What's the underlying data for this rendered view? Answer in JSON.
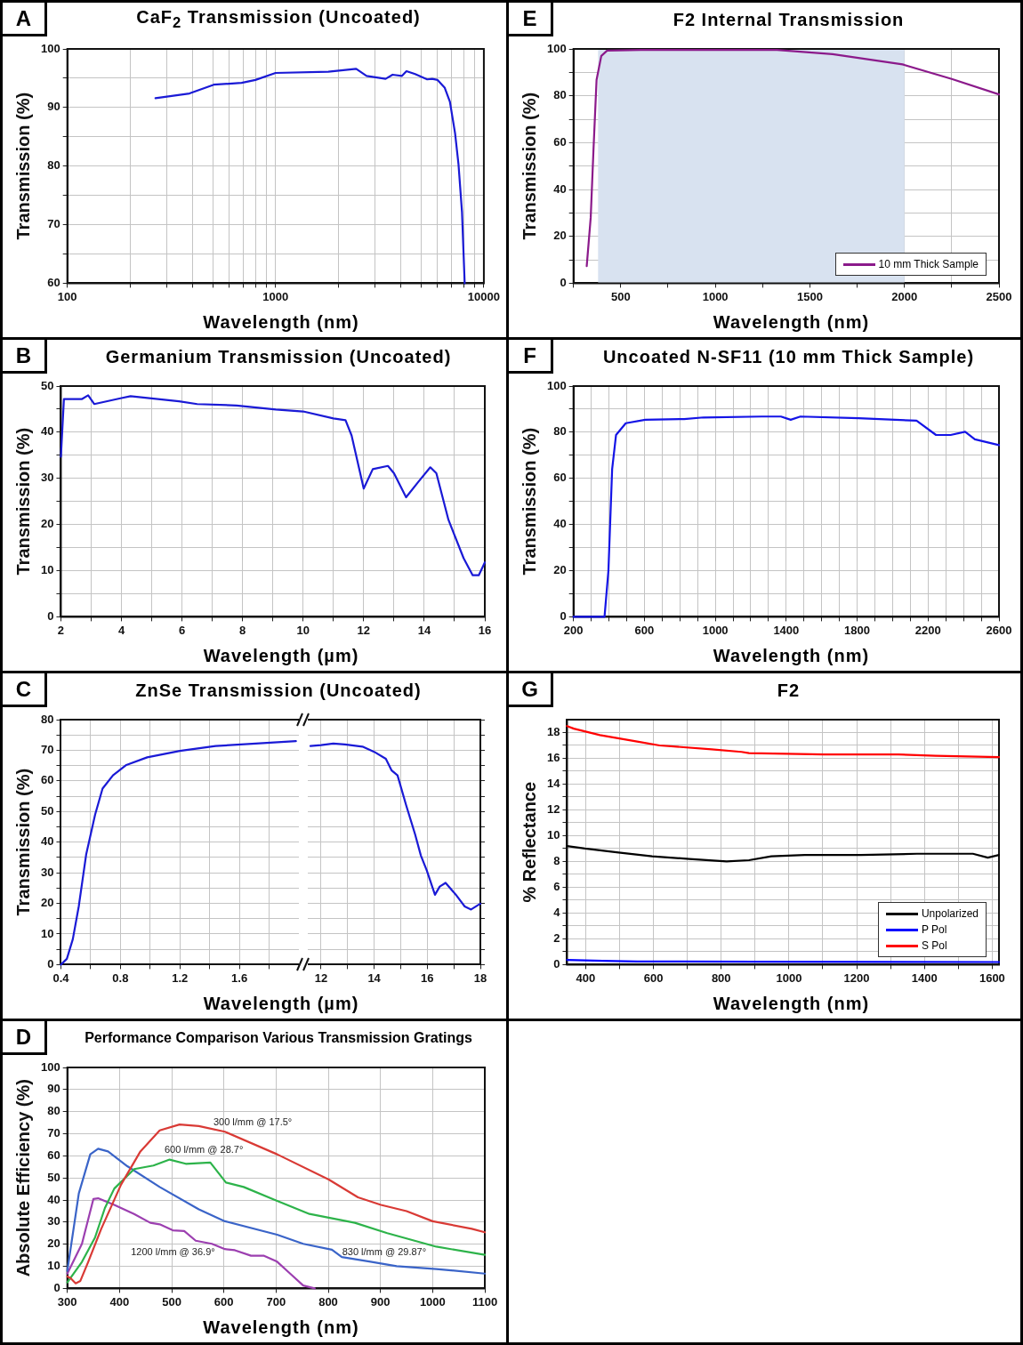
{
  "chart_data": [
    {
      "type": "line",
      "title": "CaF$_{2}$ Transmission (Uncoated)",
      "xlabel": "Wavelength (nm)",
      "ylabel": "Transmission (%)",
      "annotations": [
        "A"
      ],
      "log": "x",
      "grid": true,
      "xlim": [
        100,
        10000
      ],
      "xticks": [
        100,
        {
          "value": 200,
          "label": null
        },
        {
          "value": 300,
          "label": null
        },
        {
          "value": 400,
          "label": null
        },
        {
          "value": 500,
          "label": null
        },
        {
          "value": 600,
          "label": null
        },
        {
          "value": 700,
          "label": null
        },
        {
          "value": 800,
          "label": null
        },
        {
          "value": 900,
          "label": null
        },
        1000,
        {
          "value": 2000,
          "label": null
        },
        {
          "value": 3000,
          "label": null
        },
        {
          "value": 4000,
          "label": null
        },
        {
          "value": 5000,
          "label": null
        },
        {
          "value": 6000,
          "label": null
        },
        {
          "value": 7000,
          "label": null
        },
        {
          "value": 8000,
          "label": null
        },
        {
          "value": 9000,
          "label": null
        },
        10000
      ],
      "ylim": [
        60,
        100
      ],
      "yticks": [
        60,
        {
          "value": 65,
          "label": null
        },
        70,
        {
          "value": 75,
          "label": null
        },
        80,
        {
          "value": 85,
          "label": null
        },
        90,
        {
          "value": 95,
          "label": null
        },
        100
      ],
      "color": "#1a1ad6",
      "x": [
        265,
        386,
        505,
        687,
        800,
        1000,
        1792,
        2437,
        2735,
        3375,
        3645,
        4045,
        4250,
        4677,
        5346,
        5645,
        5998,
        6480,
        6870,
        7275,
        7555,
        7852,
        8090
      ],
      "values": [
        91.6,
        92.4,
        93.9,
        94.2,
        94.7,
        95.9,
        96.1,
        96.6,
        95.4,
        94.9,
        95.6,
        95.4,
        96.2,
        95.7,
        94.8,
        94.9,
        94.7,
        93.4,
        91.0,
        85.6,
        80.3,
        72.2,
        60
      ]
    },
    {
      "type": "line",
      "title": "Germanium Transmission (Uncoated)",
      "xlabel": "Wavelength (µm)",
      "ylabel": "Transmission (%)",
      "annotations": [
        "B"
      ],
      "grid": true,
      "xlim": [
        2,
        16
      ],
      "xticks": [
        2,
        {
          "value": 3,
          "label": null
        },
        4,
        {
          "value": 5,
          "label": null
        },
        6,
        {
          "value": 7,
          "label": null
        },
        8,
        {
          "value": 9,
          "label": null
        },
        10,
        {
          "value": 11,
          "label": null
        },
        12,
        {
          "value": 13,
          "label": null
        },
        14,
        {
          "value": 15,
          "label": null
        },
        16
      ],
      "ylim": [
        0,
        50
      ],
      "yticks": [
        0,
        {
          "value": 5,
          "label": null
        },
        10,
        {
          "value": 15,
          "label": null
        },
        20,
        {
          "value": 25,
          "label": null
        },
        30,
        {
          "value": 35,
          "label": null
        },
        40,
        {
          "value": 45,
          "label": null
        },
        50
      ],
      "color": "#1a1ad6",
      "x": [
        2.0,
        2.1,
        2.7,
        2.9,
        3.1,
        4.0,
        4.3,
        5.9,
        6.5,
        7.8,
        9.1,
        10.0,
        11.0,
        11.4,
        11.6,
        12.0,
        12.3,
        12.8,
        13.0,
        13.4,
        13.8,
        14.2,
        14.4,
        14.8,
        15.3,
        15.6,
        15.8,
        16.0
      ],
      "values": [
        34.7,
        47.2,
        47.2,
        48,
        46.1,
        47.4,
        47.8,
        46.7,
        46.1,
        45.8,
        44.9,
        44.5,
        43,
        42.6,
        39.3,
        27.8,
        32,
        32.7,
        31.1,
        25.9,
        29.2,
        32.4,
        31.1,
        21,
        12.7,
        9,
        9,
        11.8
      ]
    },
    {
      "type": "line",
      "title": "ZnSe Transmission (Uncoated)",
      "xlabel": "Wavelength (µm)",
      "ylabel": "Transmission (%)",
      "annotations": [
        "C"
      ],
      "grid": true,
      "xlim": [
        0.4,
        2.0
      ],
      "xticks": [
        0.4,
        {
          "value": 0.6,
          "label": null
        },
        0.8,
        {
          "value": 1.0,
          "label": null
        },
        1.2,
        {
          "value": 1.4,
          "label": null
        },
        1.6,
        {
          "value": 1.8,
          "label": null
        }
      ],
      "ylim": [
        0,
        80
      ],
      "yticks": [
        0,
        {
          "value": 5,
          "label": null
        },
        10,
        {
          "value": 15,
          "label": null
        },
        20,
        {
          "value": 25,
          "label": null
        },
        30,
        {
          "value": 35,
          "label": null
        },
        40,
        {
          "value": 45,
          "label": null
        },
        50,
        {
          "value": 55,
          "label": null
        },
        60,
        {
          "value": 65,
          "label": null
        },
        70,
        {
          "value": 75,
          "label": null
        },
        80
      ],
      "color": "#1a1ad6",
      "x": [
        0.4,
        0.44,
        0.48,
        0.52,
        0.57,
        0.63,
        0.68,
        0.75,
        0.84,
        0.98,
        1.2,
        1.44,
        1.71,
        1.98
      ],
      "values": [
        0,
        1.9,
        8.3,
        19,
        36,
        49,
        57.5,
        61.8,
        65.2,
        67.7,
        69.8,
        71.4,
        72.2,
        73
      ]
    },
    {
      "type": "line",
      "tick_labels": "x",
      "grid": true,
      "xlim": [
        11.5,
        18
      ],
      "xticks": [
        12,
        {
          "value": 13,
          "label": null
        },
        14,
        {
          "value": 15,
          "label": null
        },
        16,
        {
          "value": 17,
          "label": null
        },
        18
      ],
      "ylim": [
        0,
        80
      ],
      "yticks": [
        0,
        {
          "value": 5,
          "label": null
        },
        10,
        {
          "value": 15,
          "label": null
        },
        20,
        {
          "value": 25,
          "label": null
        },
        30,
        {
          "value": 35,
          "label": null
        },
        40,
        {
          "value": 45,
          "label": null
        },
        50,
        {
          "value": 55,
          "label": null
        },
        60,
        {
          "value": 65,
          "label": null
        },
        70,
        {
          "value": 75,
          "label": null
        },
        80
      ],
      "color": "#1a1ad6",
      "x": [
        11.6,
        12,
        12.46,
        12.9,
        13.56,
        14,
        14.44,
        14.66,
        14.88,
        15.2,
        15.54,
        15.76,
        15.98,
        16.29,
        16.47,
        16.69,
        17.08,
        17.41,
        17.65,
        18
      ],
      "values": [
        71.4,
        71.7,
        72.2,
        71.9,
        71.2,
        69.5,
        67.2,
        63.4,
        61.8,
        52.2,
        42.6,
        35.6,
        30.8,
        22.8,
        25.5,
        26.7,
        22.8,
        19,
        18,
        19.9
      ]
    },
    {
      "type": "line",
      "title": "Performance Comparison Various Transmission Gratings",
      "xlabel": "Wavelength (nm)",
      "ylabel": "Absolute Efficiency (%)",
      "grid": true,
      "xlim": [
        300,
        1100
      ],
      "xticks": [
        300,
        400,
        500,
        600,
        700,
        800,
        900,
        1000,
        1100
      ],
      "ylim": [
        0,
        100
      ],
      "yticks": [
        0,
        10,
        20,
        30,
        40,
        50,
        60,
        70,
        80,
        90,
        100
      ],
      "annotations": [
        "D",
        "300 l/mm @ 17.5°",
        "600 l/mm @ 28.7°",
        "1200 l/mm @ 36.9°",
        "830 l/mm @ 29.87°"
      ],
      "series": [
        {
          "color": "#d93a35",
          "x": [
            300,
            306,
            316,
            325,
            340,
            365,
            403,
            440,
            477,
            515,
            552,
            602,
            702,
            801,
            857,
            901,
            950,
            1000,
            1075,
            1100
          ],
          "values": [
            5.4,
            4.7,
            2.3,
            3.4,
            12,
            27,
            47,
            62,
            71.5,
            74.2,
            73.5,
            70.9,
            60.7,
            49.3,
            41.2,
            37.8,
            35,
            30.4,
            27,
            25.4
          ]
        },
        {
          "color": "#2db34a",
          "x": [
            300,
            328,
            353,
            372,
            390,
            428,
            465,
            496,
            527,
            574,
            604,
            638,
            700,
            764,
            851,
            913,
            1007,
            1100
          ],
          "values": [
            2.7,
            12,
            23,
            36.4,
            45.2,
            54,
            55.6,
            58.3,
            56.4,
            57,
            47.9,
            45.9,
            39.8,
            33.7,
            29.7,
            25,
            18.9,
            15.2
          ]
        },
        {
          "color": "#3a64c8",
          "x": [
            300,
            322,
            344,
            359,
            378,
            415,
            477,
            552,
            602,
            702,
            752,
            807,
            826,
            881,
            931,
            1007,
            1100
          ],
          "values": [
            8,
            43,
            60.7,
            63.2,
            62,
            55.3,
            45.9,
            35.8,
            30.4,
            24.3,
            20.2,
            17.5,
            14.2,
            12.1,
            10.1,
            8.8,
            6.7
          ]
        },
        {
          "color": "#9c3fb0",
          "x": [
            300,
            328,
            350,
            359,
            390,
            428,
            459,
            477,
            502,
            524,
            546,
            577,
            602,
            621,
            652,
            677,
            702,
            727,
            752,
            774
          ],
          "values": [
            6.7,
            20.2,
            40.5,
            40.8,
            37.8,
            33.7,
            29.7,
            29,
            26.3,
            26,
            21.6,
            20.2,
            17.8,
            17.3,
            14.8,
            14.8,
            12.1,
            6.7,
            1.3,
            0
          ]
        }
      ]
    },
    {
      "type": "line",
      "title": "F2 Internal Transmission",
      "xlabel": "Wavelength (nm)",
      "ylabel": "Transmission (%)",
      "annotations": [
        "E"
      ],
      "grid": true,
      "legend": "bottom right",
      "xlim": [
        250,
        2500
      ],
      "xticks": [
        {
          "value": 250,
          "label": null
        },
        500,
        {
          "value": 750,
          "label": null
        },
        1000,
        {
          "value": 1250,
          "label": null
        },
        1500,
        {
          "value": 1750,
          "label": null
        },
        2000,
        {
          "value": 2250,
          "label": null
        },
        2500
      ],
      "ylim": [
        0,
        100
      ],
      "yticks": [
        0,
        {
          "value": 10,
          "label": null
        },
        20,
        {
          "value": 30,
          "label": null
        },
        40,
        {
          "value": 50,
          "label": null
        },
        60,
        {
          "value": 70,
          "label": null
        },
        80,
        {
          "value": 90,
          "label": null
        },
        100
      ],
      "bands": [
        {
          "axis": "x",
          "from": 380,
          "to": 2000,
          "color": "#d8e2f0"
        }
      ],
      "series": [
        {
          "name": "10 mm Thick Sample",
          "color": "#8b1a8b",
          "x": [
            320,
            341,
            356,
            372,
            397,
            428,
            607,
            1326,
            1620,
            1990,
            2250,
            2500
          ],
          "values": [
            7.3,
            28,
            57.5,
            86.8,
            97,
            99.3,
            99.6,
            99.6,
            97.8,
            93.4,
            87.2,
            80.6
          ]
        }
      ]
    },
    {
      "type": "line",
      "title": "Uncoated N-SF11 (10 mm Thick Sample)",
      "xlabel": "Wavelength (nm)",
      "ylabel": "Transmission (%)",
      "annotations": [
        "F"
      ],
      "grid": true,
      "xlim": [
        200,
        2600
      ],
      "xticks": [
        200,
        {
          "value": 300,
          "label": null
        },
        {
          "value": 400,
          "label": null
        },
        {
          "value": 500,
          "label": null
        },
        600,
        {
          "value": 700,
          "label": null
        },
        {
          "value": 800,
          "label": null
        },
        {
          "value": 900,
          "label": null
        },
        1000,
        {
          "value": 1100,
          "label": null
        },
        {
          "value": 1200,
          "label": null
        },
        {
          "value": 1300,
          "label": null
        },
        1400,
        {
          "value": 1500,
          "label": null
        },
        {
          "value": 1600,
          "label": null
        },
        {
          "value": 1700,
          "label": null
        },
        1800,
        {
          "value": 1900,
          "label": null
        },
        {
          "value": 2000,
          "label": null
        },
        {
          "value": 2100,
          "label": null
        },
        2200,
        {
          "value": 2300,
          "label": null
        },
        {
          "value": 2400,
          "label": null
        },
        {
          "value": 2500,
          "label": null
        },
        2600
      ],
      "ylim": [
        0,
        100
      ],
      "yticks": [
        0,
        {
          "value": 10,
          "label": null
        },
        20,
        {
          "value": 30,
          "label": null
        },
        40,
        {
          "value": 50,
          "label": null
        },
        60,
        {
          "value": 70,
          "label": null
        },
        80,
        {
          "value": 90,
          "label": null
        },
        100
      ],
      "color": "#1414e6",
      "x": [
        200,
        375,
        397,
        418,
        440,
        495,
        605,
        824,
        933,
        1261,
        1370,
        1425,
        1480,
        1808,
        2135,
        2245,
        2327,
        2409,
        2464,
        2600
      ],
      "values": [
        0,
        0,
        20,
        64,
        78.8,
        83.9,
        85.4,
        85.7,
        86.4,
        86.8,
        86.8,
        85.4,
        86.8,
        86.1,
        85,
        78.8,
        78.8,
        80.2,
        76.9,
        74.4
      ]
    },
    {
      "type": "line",
      "title": "F2",
      "xlabel": "Wavelength (nm)",
      "ylabel": "% Reflectance",
      "annotations": [
        "G"
      ],
      "grid": true,
      "legend": "bottom right",
      "xlim": [
        345,
        1620
      ],
      "xticks": [
        400,
        {
          "value": 500,
          "label": null
        },
        600,
        {
          "value": 700,
          "label": null
        },
        800,
        {
          "value": 900,
          "label": null
        },
        1000,
        {
          "value": 1100,
          "label": null
        },
        1200,
        {
          "value": 1300,
          "label": null
        },
        1400,
        {
          "value": 1500,
          "label": null
        },
        1600
      ],
      "ylim": [
        0,
        19
      ],
      "yticks": [
        0,
        {
          "value": 1,
          "label": null
        },
        2,
        {
          "value": 3,
          "label": null
        },
        4,
        {
          "value": 5,
          "label": null
        },
        6,
        {
          "value": 7,
          "label": null
        },
        8,
        {
          "value": 9,
          "label": null
        },
        10,
        {
          "value": 11,
          "label": null
        },
        12,
        {
          "value": 13,
          "label": null
        },
        14,
        {
          "value": 15,
          "label": null
        },
        16,
        {
          "value": 17,
          "label": null
        },
        18
      ],
      "series": [
        {
          "name": "Unpolarized",
          "color": "#000000",
          "x": [
            345,
            398,
            497,
            596,
            706,
            816,
            882,
            948,
            1047,
            1212,
            1378,
            1543,
            1587,
            1620
          ],
          "values": [
            9.2,
            9.0,
            8.7,
            8.4,
            8.2,
            8.0,
            8.1,
            8.4,
            8.5,
            8.5,
            8.6,
            8.6,
            8.3,
            8.5
          ]
        },
        {
          "name": "P Pol",
          "color": "#0000ff",
          "x": [
            345,
            450,
            552,
            900,
            1620
          ],
          "values": [
            0.37,
            0.3,
            0.25,
            0.22,
            0.2
          ]
        },
        {
          "name": "S Pol",
          "color": "#ff0000",
          "x": [
            345,
            365,
            442,
            552,
            618,
            772,
            860,
            882,
            1103,
            1323,
            1433,
            1620
          ],
          "values": [
            18.5,
            18.3,
            17.8,
            17.3,
            17.0,
            16.7,
            16.5,
            16.4,
            16.3,
            16.3,
            16.2,
            16.1
          ]
        }
      ]
    }
  ]
}
